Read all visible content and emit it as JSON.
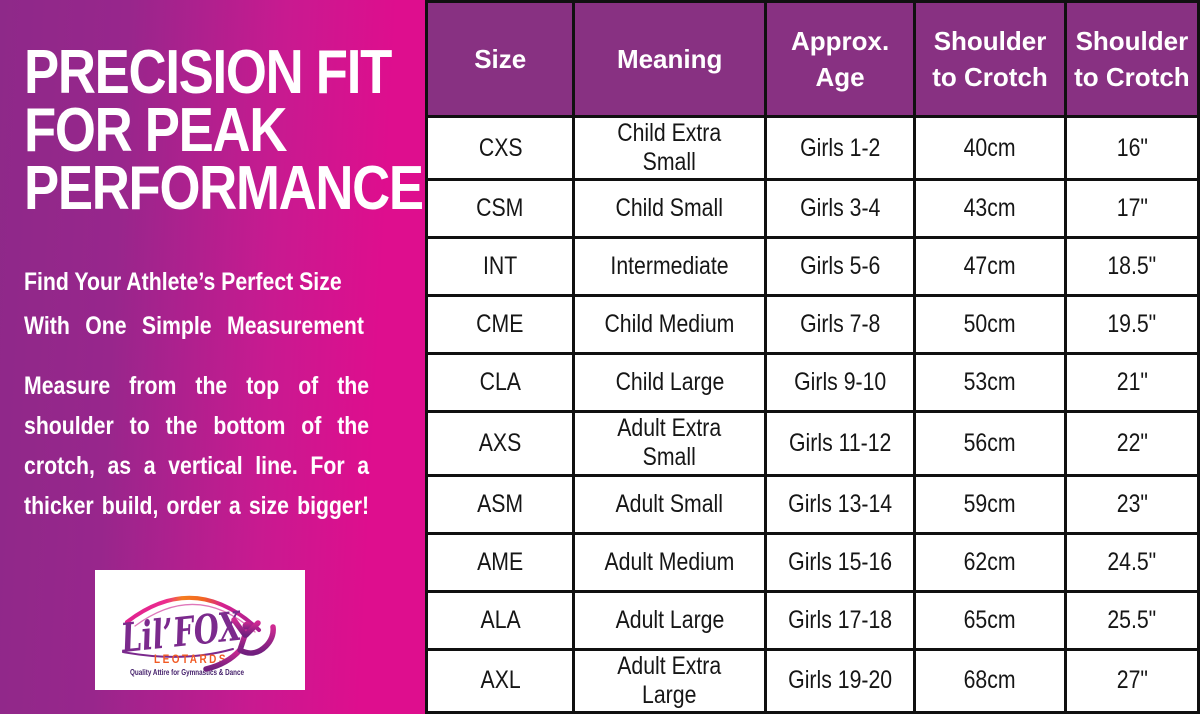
{
  "left_panel": {
    "title_lines": [
      "PRECISION FIT",
      "FOR PEAK",
      "PERFORMANCE"
    ],
    "subtitle_lines": [
      "Find Your Athlete’s Perfect Size",
      "With One Simple Measurement"
    ],
    "body_lines": [
      "Measure from the top of the",
      "shoulder to the bottom of the",
      "crotch, as a vertical line. For a",
      "thicker build, order a size bigger!"
    ],
    "logo": {
      "brand_script": "Lil’FOX",
      "brand_word": "LEOTARDS",
      "tagline": "Quality Attire for Gymnastics & Dance"
    }
  },
  "table": {
    "headers": [
      "Size",
      "Meaning",
      "Approx.\nAge",
      "Shoulder\nto Crotch",
      "Shoulder\nto Crotch"
    ],
    "rows": [
      [
        "CXS",
        "Child Extra Small",
        "Girls 1-2",
        "40cm",
        "16\""
      ],
      [
        "CSM",
        "Child Small",
        "Girls 3-4",
        "43cm",
        "17\""
      ],
      [
        "INT",
        "Intermediate",
        "Girls 5-6",
        "47cm",
        "18.5\""
      ],
      [
        "CME",
        "Child Medium",
        "Girls 7-8",
        "50cm",
        "19.5\""
      ],
      [
        "CLA",
        "Child Large",
        "Girls 9-10",
        "53cm",
        "21\""
      ],
      [
        "AXS",
        "Adult Extra Small",
        "Girls 11-12",
        "56cm",
        "22\""
      ],
      [
        "ASM",
        "Adult Small",
        "Girls 13-14",
        "59cm",
        "23\""
      ],
      [
        "AME",
        "Adult Medium",
        "Girls 15-16",
        "62cm",
        "24.5\""
      ],
      [
        "ALA",
        "Adult Large",
        "Girls 17-18",
        "65cm",
        "25.5\""
      ],
      [
        "AXL",
        "Adult Extra Large",
        "Girls 19-20",
        "68cm",
        "27\""
      ]
    ]
  },
  "colors": {
    "gradient_start": "#8e2989",
    "gradient_end": "#de0e8e",
    "table_header_bg": "#883182",
    "table_border": "#101010",
    "logo_purple": "#7b2a8d",
    "logo_orange": "#f15a24",
    "tagline_purple": "#45206b",
    "gymnast_pink": "#cf2a92",
    "gymnast_purple": "#701f7e"
  }
}
